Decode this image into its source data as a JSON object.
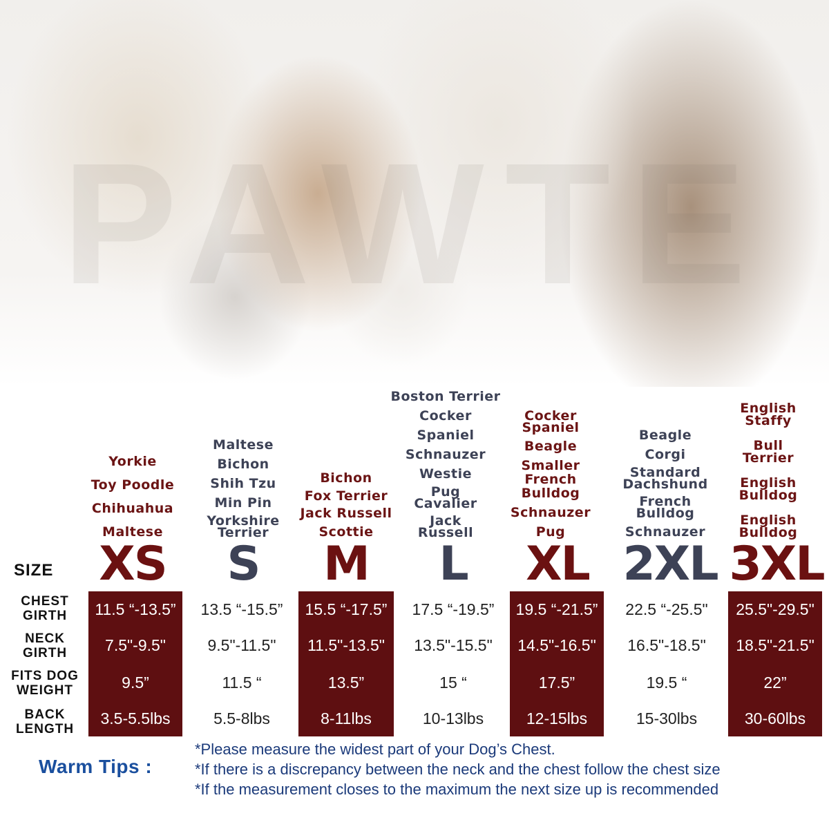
{
  "watermark": "PAWTE",
  "breeds": {
    "xs": [
      "Yorkie",
      "Toy Poodle",
      "Chihuahua",
      "Maltese"
    ],
    "s": [
      "Maltese",
      "Bichon",
      "Shih Tzu",
      "Min Pin",
      "Yorkshire Terrier"
    ],
    "m": [
      "Bichon",
      "Fox Terrier",
      "Jack Russell",
      "Scottie"
    ],
    "l": [
      "Boston Terrier",
      "Cocker",
      "Spaniel",
      "Schnauzer",
      "Westie",
      "Pug Cavalier",
      "Jack Russell"
    ],
    "xl": [
      "Cocker Spaniel",
      "Beagle",
      "Smaller French Bulldog",
      "Schnauzer",
      "Pug"
    ],
    "xxl": [
      "Beagle",
      "Corgi",
      "Standard Dachshund",
      "French Bulldog",
      "Schnauzer"
    ],
    "xxxl": [
      "English Staffy",
      "Bull Terrier",
      "English Bulldog",
      "English Bulldog"
    ]
  },
  "size_label": "SIZE",
  "sizes": [
    "XS",
    "S",
    "M",
    "L",
    "XL",
    "2XL",
    "3XL"
  ],
  "row_labels": [
    "CHEST GIRTH",
    "NECK GIRTH",
    "FITS DOG WEIGHT",
    "BACK LENGTH"
  ],
  "table": {
    "xs": [
      "11.5 “-13.5”",
      "7.5\"-9.5\"",
      "9.5”",
      "3.5-5.5lbs"
    ],
    "s": [
      "13.5 “-15.5”",
      "9.5\"-11.5\"",
      "11.5 “",
      "5.5-8lbs"
    ],
    "m": [
      "15.5 “-17.5”",
      "11.5\"-13.5\"",
      "13.5”",
      "8-11lbs"
    ],
    "l": [
      "17.5 “-19.5”",
      "13.5\"-15.5\"",
      "15 “",
      "10-13lbs"
    ],
    "xl": [
      "19.5 “-21.5”",
      "14.5\"-16.5\"",
      "17.5”",
      "12-15lbs"
    ],
    "xxl": [
      "22.5 “-25.5\"",
      "16.5\"-18.5\"",
      "19.5 “",
      "15-30lbs"
    ],
    "xxxl": [
      "25.5\"-29.5\"",
      "18.5\"-21.5\"",
      "22”",
      "30-60lbs"
    ]
  },
  "tips": {
    "label": "Warm Tips :",
    "lines": [
      "*Please measure the widest part of your Dog’s Chest.",
      "*If there is a discrepancy between the neck and the chest  follow the chest size",
      "*If the measurement closes to the maximum the next size up is recommended"
    ]
  },
  "colors": {
    "dark_red": "#5e0f11",
    "breed_red": "#6b1414",
    "breed_gray": "#3d4256",
    "tips_blue": "#1a4f9e"
  }
}
